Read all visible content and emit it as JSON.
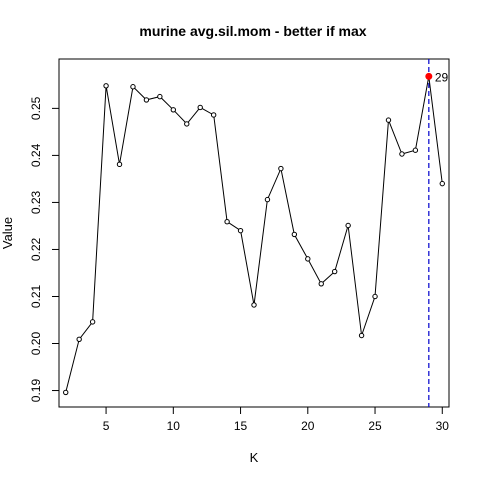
{
  "chart_data": {
    "type": "line",
    "title": "murine avg.sil.mom - better if  max",
    "xlabel": "K",
    "ylabel": "Value",
    "xlim": [
      1.5,
      30.5
    ],
    "ylim": [
      0.1865,
      0.2605
    ],
    "xticks": [
      5,
      10,
      15,
      20,
      25,
      30
    ],
    "yticks": [
      0.19,
      0.2,
      0.21,
      0.22,
      0.23,
      0.24,
      0.25
    ],
    "ytick_labels": [
      "0.19",
      "0.20",
      "0.21",
      "0.22",
      "0.23",
      "0.24",
      "0.25"
    ],
    "x": [
      2,
      3,
      4,
      5,
      6,
      7,
      8,
      9,
      10,
      11,
      12,
      13,
      14,
      15,
      16,
      17,
      18,
      19,
      20,
      21,
      22,
      23,
      24,
      25,
      26,
      27,
      28,
      29,
      30
    ],
    "values": [
      0.1896,
      0.2009,
      0.2046,
      0.2548,
      0.2381,
      0.2546,
      0.2518,
      0.2525,
      0.2497,
      0.2467,
      0.2502,
      0.2486,
      0.2259,
      0.224,
      0.2082,
      0.2306,
      0.2372,
      0.2232,
      0.218,
      0.2127,
      0.2153,
      0.2251,
      0.2017,
      0.21,
      0.2475,
      0.2403,
      0.2411,
      0.2568,
      0.234
    ],
    "best": {
      "x": 29,
      "y": 0.2568,
      "label": "29",
      "color": "#ff0000"
    },
    "vline": {
      "x": 29,
      "color": "#0000cc",
      "style": "dashed"
    },
    "grid": false,
    "legend": "none"
  }
}
